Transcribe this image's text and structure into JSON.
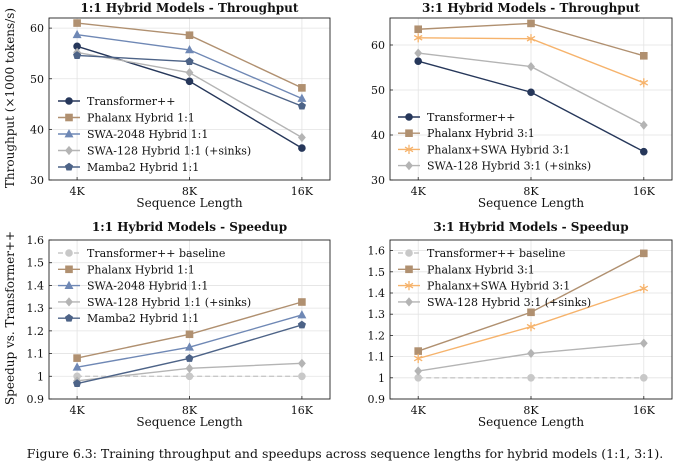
{
  "caption": "Figure 6.3: Training throughput and speedups across sequence lengths for hybrid models (1:1, 3:1).",
  "colors": {
    "transformer": "#26375a",
    "phalanx": "#b09070",
    "swa2048": "#6f88b5",
    "swa128": "#b4b4b4",
    "mamba2": "#4d6387",
    "phalanx_swa": "#f6b36c",
    "baseline": "#c8c8c8"
  },
  "chart_data": [
    {
      "type": "line",
      "title": "1:1 Hybrid Models - Throughput",
      "xlabel": "Sequence Length",
      "ylabel": "Throughput (×1000 tokens/s)",
      "categories": [
        "4K",
        "8K",
        "16K"
      ],
      "ylim": [
        30,
        62
      ],
      "yticks": [
        "30",
        "40",
        "50",
        "60"
      ],
      "grid": true,
      "legend_position": "center-left",
      "series": [
        {
          "name": "Transformer++",
          "marker": "circle",
          "color_key": "transformer",
          "values": [
            56.4,
            49.5,
            36.3
          ]
        },
        {
          "name": "Phalanx Hybrid 1:1",
          "marker": "square",
          "color_key": "phalanx",
          "values": [
            61.0,
            58.6,
            48.2
          ]
        },
        {
          "name": "SWA-2048 Hybrid 1:1",
          "marker": "triangle",
          "color_key": "swa2048",
          "values": [
            58.7,
            55.7,
            46.1
          ]
        },
        {
          "name": "SWA-128 Hybrid 1:1 (+sinks)",
          "marker": "diamond",
          "color_key": "swa128",
          "values": [
            55.2,
            51.2,
            38.4
          ]
        },
        {
          "name": "Mamba2 Hybrid 1:1",
          "marker": "pentagon",
          "color_key": "mamba2",
          "values": [
            54.6,
            53.4,
            44.6
          ]
        }
      ]
    },
    {
      "type": "line",
      "title": "3:1 Hybrid Models - Throughput",
      "xlabel": "Sequence Length",
      "ylabel": "",
      "categories": [
        "4K",
        "8K",
        "16K"
      ],
      "ylim": [
        30,
        66
      ],
      "yticks": [
        "30",
        "40",
        "50",
        "60"
      ],
      "grid": true,
      "legend_position": "bottom-left",
      "series": [
        {
          "name": "Transformer++",
          "marker": "circle",
          "color_key": "transformer",
          "values": [
            56.4,
            49.5,
            36.3
          ]
        },
        {
          "name": "Phalanx Hybrid 3:1",
          "marker": "square",
          "color_key": "phalanx",
          "values": [
            63.5,
            64.8,
            57.6
          ]
        },
        {
          "name": "Phalanx+SWA Hybrid 3:1",
          "marker": "star",
          "color_key": "phalanx_swa",
          "values": [
            61.6,
            61.4,
            51.6
          ]
        },
        {
          "name": "SWA-128 Hybrid 3:1 (+sinks)",
          "marker": "diamond",
          "color_key": "swa128",
          "values": [
            58.2,
            55.2,
            42.2
          ]
        }
      ]
    },
    {
      "type": "line",
      "title": "1:1 Hybrid Models - Speedup",
      "xlabel": "Sequence Length",
      "ylabel": "Speedup vs. Transformer++",
      "categories": [
        "4K",
        "8K",
        "16K"
      ],
      "ylim": [
        0.9,
        1.6
      ],
      "yticks": [
        "0.9",
        "1",
        "1.1",
        "1.2",
        "1.3",
        "1.4",
        "1.5",
        "1.6"
      ],
      "grid": true,
      "legend_position": "top-left",
      "series": [
        {
          "name": "Transformer++ baseline",
          "marker": "circle",
          "dashed": true,
          "color_key": "baseline",
          "values": [
            1.0,
            1.0,
            1.0
          ]
        },
        {
          "name": "Phalanx Hybrid 1:1",
          "marker": "square",
          "color_key": "phalanx",
          "values": [
            1.08,
            1.185,
            1.327
          ]
        },
        {
          "name": "SWA-2048 Hybrid 1:1",
          "marker": "triangle",
          "color_key": "swa2048",
          "values": [
            1.04,
            1.128,
            1.27
          ]
        },
        {
          "name": "SWA-128 Hybrid 1:1 (+sinks)",
          "marker": "diamond",
          "color_key": "swa128",
          "values": [
            0.98,
            1.035,
            1.057
          ]
        },
        {
          "name": "Mamba2 Hybrid 1:1",
          "marker": "pentagon",
          "color_key": "mamba2",
          "values": [
            0.968,
            1.079,
            1.226
          ]
        }
      ]
    },
    {
      "type": "line",
      "title": "3:1 Hybrid Models - Speedup",
      "xlabel": "Sequence Length",
      "ylabel": "",
      "categories": [
        "4K",
        "8K",
        "16K"
      ],
      "ylim": [
        0.9,
        1.65
      ],
      "yticks": [
        "0.9",
        "1",
        "1.1",
        "1.2",
        "1.3",
        "1.4",
        "1.5",
        "1.6"
      ],
      "grid": true,
      "legend_position": "top-left",
      "series": [
        {
          "name": "Transformer++ baseline",
          "marker": "circle",
          "dashed": true,
          "color_key": "baseline",
          "values": [
            1.0,
            1.0,
            1.0
          ]
        },
        {
          "name": "Phalanx Hybrid 3:1",
          "marker": "square",
          "color_key": "phalanx",
          "values": [
            1.126,
            1.309,
            1.587
          ]
        },
        {
          "name": "Phalanx+SWA Hybrid 3:1",
          "marker": "star",
          "color_key": "phalanx_swa",
          "values": [
            1.091,
            1.241,
            1.421
          ]
        },
        {
          "name": "SWA-128 Hybrid 3:1 (+sinks)",
          "marker": "diamond",
          "color_key": "swa128",
          "values": [
            1.032,
            1.115,
            1.163
          ]
        }
      ]
    }
  ]
}
